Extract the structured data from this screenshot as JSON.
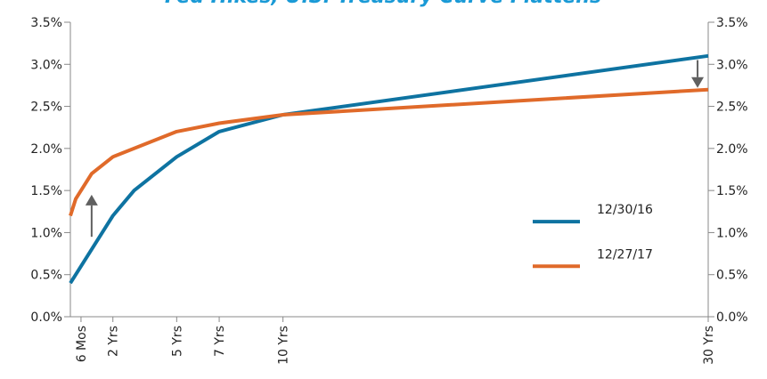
{
  "chart_data": {
    "type": "line",
    "title": "Fed Hikes, U.S. Treasury Curve Flattens",
    "xlabel": "",
    "ylabel": "",
    "x": [
      0.5,
      1,
      2,
      3,
      5,
      7,
      10,
      30
    ],
    "x_tick_values": [
      0.5,
      2,
      5,
      7,
      10,
      30
    ],
    "x_tick_labels": [
      "6 Mos",
      "2 Yrs",
      "5 Yrs",
      "7 Yrs",
      "10 Yrs",
      "30 Yrs"
    ],
    "y_tick_values": [
      0,
      0.5,
      1,
      1.5,
      2,
      2.5,
      3,
      3.5
    ],
    "y_tick_labels": [
      "0.0%",
      "0.5%",
      "1.0%",
      "1.5%",
      "2.0%",
      "2.5%",
      "3.0%",
      "3.5%"
    ],
    "ylim": [
      0,
      3.5
    ],
    "xlim": [
      0,
      30
    ],
    "grid": false,
    "legend_position": "right",
    "series": [
      {
        "name": "12/30/16",
        "color": "#0e73a1",
        "points": [
          [
            0,
            0.4
          ],
          [
            0.5,
            0.6
          ],
          [
            2,
            1.2
          ],
          [
            3,
            1.5
          ],
          [
            5,
            1.9
          ],
          [
            7,
            2.2
          ],
          [
            10,
            2.4
          ],
          [
            30,
            3.1
          ]
        ]
      },
      {
        "name": "12/27/17",
        "color": "#e06a2a",
        "points": [
          [
            0,
            1.2
          ],
          [
            0.25,
            1.4
          ],
          [
            1,
            1.7
          ],
          [
            2,
            1.9
          ],
          [
            5,
            2.2
          ],
          [
            7,
            2.3
          ],
          [
            10,
            2.4
          ],
          [
            30,
            2.7
          ]
        ]
      }
    ],
    "annotations": [
      {
        "type": "arrow",
        "direction": "up",
        "x": 1,
        "from": 0.95,
        "to": 1.45,
        "color": "#606060"
      },
      {
        "type": "arrow",
        "direction": "down",
        "x": 29.5,
        "from": 3.05,
        "to": 2.72,
        "color": "#606060"
      }
    ],
    "title_color": "#1a9ad6"
  }
}
